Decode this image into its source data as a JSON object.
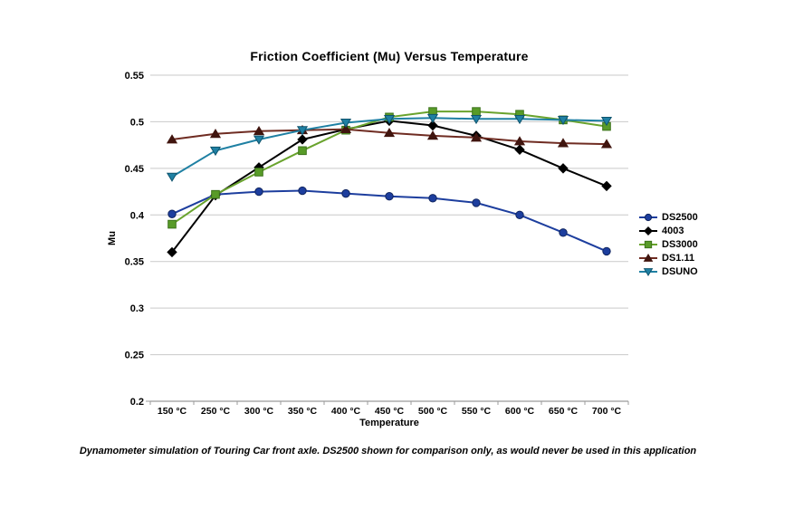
{
  "title": "Friction Coefficient (Mu) Versus Temperature",
  "y_axis_title": "Mu",
  "x_axis_title": "Temperature",
  "caption": "Dynamometer simulation of Touring Car front axle. DS2500 shown for comparison only, as would never be used in this application",
  "colors": {
    "background": "#ffffff",
    "gridline": "#c9c9c9",
    "axis_line": "#9b9b9b",
    "text": "#000000"
  },
  "chart_data": {
    "type": "line",
    "title": "Friction Coefficient (Mu) Versus Temperature",
    "xlabel": "Temperature",
    "ylabel": "Mu",
    "ylim": [
      0.2,
      0.55
    ],
    "grid": true,
    "legend_position": "right",
    "y_ticks": [
      0.55,
      0.5,
      0.45,
      0.4,
      0.35,
      0.3,
      0.25,
      0.2
    ],
    "y_tick_labels": [
      "0.55",
      "0.5",
      "0.45",
      "0.4",
      "0.35",
      "0.3",
      "0.25",
      "0.2"
    ],
    "categories": [
      "150 °C",
      "250 °C",
      "300 °C",
      "350 °C",
      "400 °C",
      "450 °C",
      "500 °C",
      "550 °C",
      "600 °C",
      "650 °C",
      "700 °C"
    ],
    "series": [
      {
        "name": "DS2500",
        "marker": "circle",
        "line_color": "#1d3e9e",
        "marker_fill": "#1d3e9e",
        "marker_stroke": "#10255f",
        "values": [
          0.401,
          0.422,
          0.425,
          0.426,
          0.423,
          0.42,
          0.418,
          0.413,
          0.4,
          0.381,
          0.361
        ]
      },
      {
        "name": "4003",
        "marker": "diamond",
        "line_color": "#000000",
        "marker_fill": "#000000",
        "marker_stroke": "#000000",
        "values": [
          0.36,
          0.421,
          0.451,
          0.481,
          0.492,
          0.501,
          0.496,
          0.485,
          0.47,
          0.45,
          0.431
        ]
      },
      {
        "name": "DS3000",
        "marker": "square",
        "line_color": "#69a32d",
        "marker_fill": "#589b28",
        "marker_stroke": "#3c731b",
        "values": [
          0.39,
          0.422,
          0.446,
          0.469,
          0.491,
          0.505,
          0.511,
          0.511,
          0.508,
          0.502,
          0.495
        ]
      },
      {
        "name": "DS1.11",
        "marker": "triangle-up",
        "line_color": "#6f2c22",
        "marker_fill": "#40150f",
        "marker_stroke": "#40150f",
        "values": [
          0.481,
          0.487,
          0.49,
          0.491,
          0.492,
          0.488,
          0.485,
          0.483,
          0.479,
          0.477,
          0.476
        ]
      },
      {
        "name": "DSUNO",
        "marker": "triangle-down",
        "line_color": "#1f80a3",
        "marker_fill": "#1f80a3",
        "marker_stroke": "#0f546e",
        "values": [
          0.441,
          0.469,
          0.481,
          0.491,
          0.499,
          0.503,
          0.504,
          0.503,
          0.503,
          0.502,
          0.501
        ]
      }
    ]
  }
}
